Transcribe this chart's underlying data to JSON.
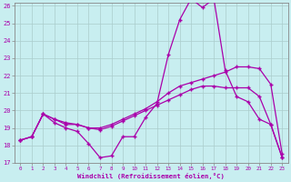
{
  "title": "",
  "xlabel": "Windchill (Refroidissement éolien,°C)",
  "ylabel": "",
  "bg_color": "#c8eef0",
  "line_color": "#aa00aa",
  "grid_color": "#aacccc",
  "xmin": 0,
  "xmax": 23,
  "ymin": 17,
  "ymax": 26,
  "x_ticks": [
    0,
    1,
    2,
    3,
    4,
    5,
    6,
    7,
    8,
    9,
    10,
    11,
    12,
    13,
    14,
    15,
    16,
    17,
    18,
    19,
    20,
    21,
    22,
    23
  ],
  "y_ticks": [
    17,
    18,
    19,
    20,
    21,
    22,
    23,
    24,
    25,
    26
  ],
  "line1": [
    18.3,
    18.5,
    19.8,
    19.3,
    19.0,
    18.8,
    18.1,
    17.3,
    17.4,
    18.5,
    18.5,
    19.6,
    20.4,
    23.2,
    25.2,
    26.4,
    25.9,
    26.4,
    22.3,
    20.8,
    20.5,
    19.5,
    19.2,
    17.3
  ],
  "line2": [
    18.3,
    18.5,
    19.8,
    19.5,
    19.3,
    19.2,
    19.0,
    19.0,
    19.2,
    19.5,
    19.8,
    20.1,
    20.5,
    21.0,
    21.4,
    21.6,
    21.8,
    22.0,
    22.2,
    22.5,
    22.5,
    22.4,
    21.5,
    17.5
  ],
  "line3": [
    18.3,
    18.5,
    19.8,
    19.5,
    19.2,
    19.2,
    19.0,
    18.9,
    19.1,
    19.4,
    19.7,
    20.0,
    20.3,
    20.6,
    20.9,
    21.2,
    21.4,
    21.4,
    21.3,
    21.3,
    21.3,
    20.8,
    19.2,
    17.3
  ]
}
